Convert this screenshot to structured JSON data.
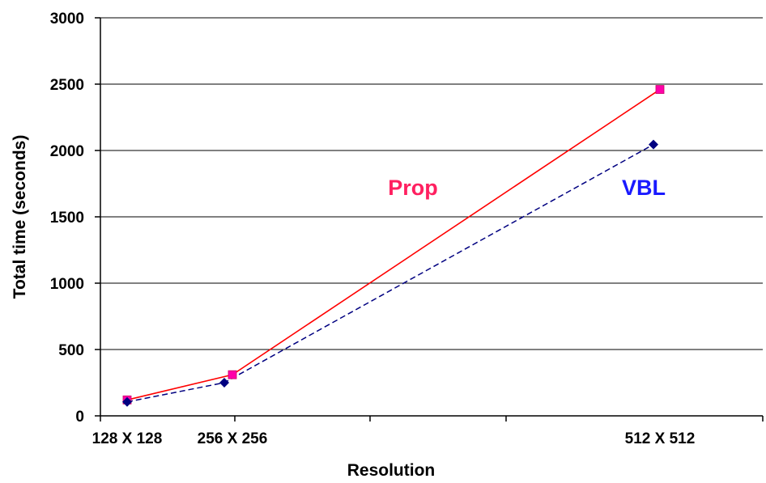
{
  "chart_data": {
    "type": "line",
    "title": "",
    "xlabel": "Resolution",
    "ylabel": "Total time (seconds)",
    "ylim": [
      0,
      3000
    ],
    "y_ticks": [
      "0",
      "500",
      "1000",
      "1500",
      "2000",
      "2500",
      "3000"
    ],
    "x_tick_labels": [
      "128 X 128",
      "256 X 256",
      "512 X 512"
    ],
    "grid": true,
    "legend": "inline labels",
    "series": [
      {
        "name": "Prop",
        "color": "#ff0000",
        "marker_color": "#ff00aa",
        "marker": "square",
        "line": "solid",
        "x": [
          "128 X 128",
          "256 X 256",
          "512 X 512"
        ],
        "values": [
          120,
          310,
          2460
        ]
      },
      {
        "name": "VBL",
        "color": "#000080",
        "marker_color": "#000080",
        "marker": "diamond",
        "line": "dashed",
        "x": [
          "128 X 128",
          "256 X 256",
          "512 X 512"
        ],
        "values": [
          105,
          250,
          2045
        ]
      }
    ],
    "series_label_colors": {
      "Prop": "#ff2060",
      "VBL": "#1a1aff"
    }
  }
}
